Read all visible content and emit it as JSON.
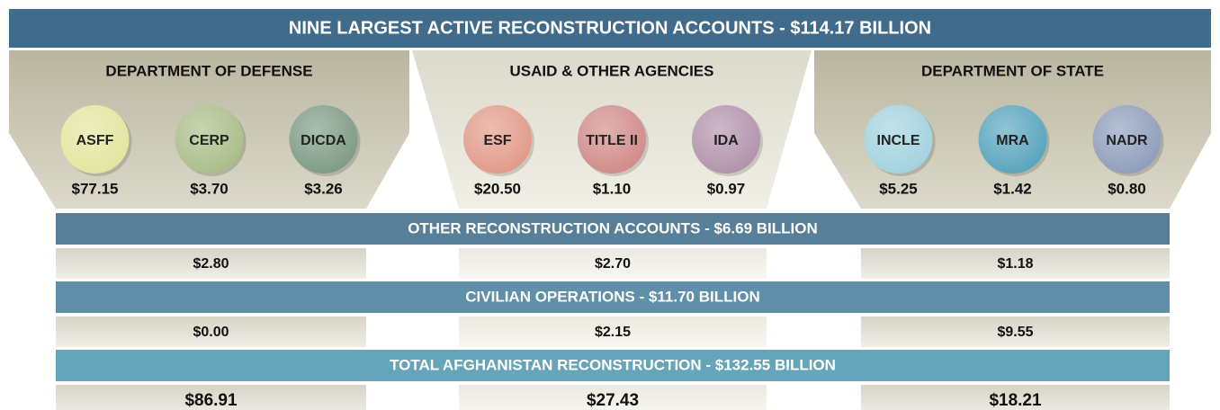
{
  "header": {
    "title": "NINE LARGEST ACTIVE RECONSTRUCTION ACCOUNTS  - $114.17 BILLION"
  },
  "agencies": [
    {
      "name": "DEPARTMENT OF DEFENSE",
      "accounts": [
        {
          "name": "ASFF",
          "value": "$77.15",
          "color": "#e3e59e"
        },
        {
          "name": "CERP",
          "value": "$3.70",
          "color": "#a9bd88"
        },
        {
          "name": "DICDA",
          "value": "$3.26",
          "color": "#7d9a84"
        }
      ]
    },
    {
      "name": "USAID & OTHER AGENCIES",
      "accounts": [
        {
          "name": "ESF",
          "value": "$20.50",
          "color": "#e19a88"
        },
        {
          "name": "TITLE II",
          "value": "$1.10",
          "color": "#d08a88"
        },
        {
          "name": "IDA",
          "value": "$0.97",
          "color": "#b192ab"
        }
      ]
    },
    {
      "name": "DEPARTMENT OF STATE",
      "accounts": [
        {
          "name": "INCLE",
          "value": "$5.25",
          "color": "#a2d2de"
        },
        {
          "name": "MRA",
          "value": "$1.42",
          "color": "#56a4bd"
        },
        {
          "name": "NADR",
          "value": "$0.80",
          "color": "#8e9dbb"
        }
      ]
    }
  ],
  "sections": [
    {
      "title": "OTHER RECONSTRUCTION ACCOUNTS - $6.69 BILLION",
      "values": [
        "$2.80",
        "$2.70",
        "$1.18"
      ],
      "color": "#587f98"
    },
    {
      "title": "CIVILIAN OPERATIONS - $11.70 BILLION",
      "values": [
        "$0.00",
        "$2.15",
        "$9.55"
      ],
      "color": "#5f8fa9"
    },
    {
      "title": "TOTAL AFGHANISTAN RECONSTRUCTION - $132.55 BILLION",
      "values": [
        "$86.91",
        "$27.43",
        "$18.21"
      ],
      "color": "#66a5b9"
    }
  ]
}
